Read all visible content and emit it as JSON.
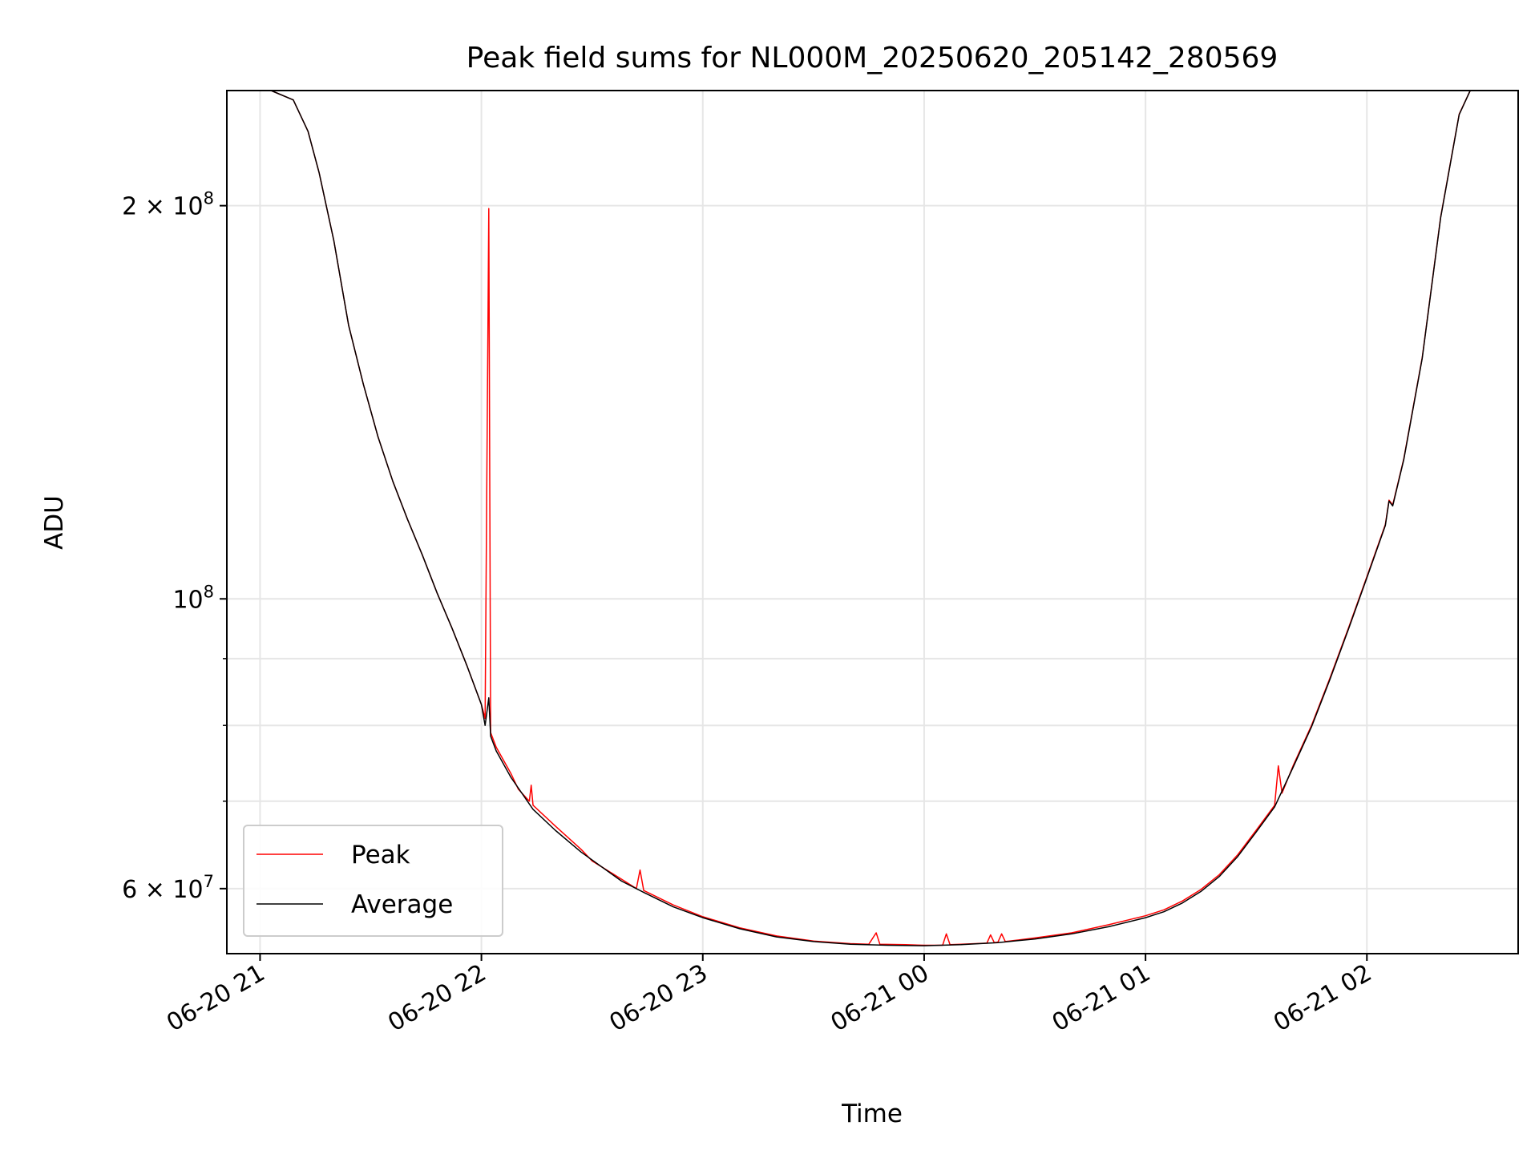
{
  "chart_data": {
    "type": "line",
    "title": "Peak field sums for NL000M_20250620_205142_280569",
    "xlabel": "Time",
    "ylabel": "ADU",
    "y_scale": "log",
    "ylim": [
      53500000,
      245000000
    ],
    "xlim": [
      "2025-06-20T20:51",
      "2025-06-21T02:41"
    ],
    "x_ticks": [
      {
        "t": "2025-06-20T21:00",
        "label": "06-20 21"
      },
      {
        "t": "2025-06-20T22:00",
        "label": "06-20 22"
      },
      {
        "t": "2025-06-20T23:00",
        "label": "06-20 23"
      },
      {
        "t": "2025-06-21T00:00",
        "label": "06-21 00"
      },
      {
        "t": "2025-06-21T01:00",
        "label": "06-21 01"
      },
      {
        "t": "2025-06-21T02:00",
        "label": "06-21 02"
      }
    ],
    "y_ticks_major": [
      {
        "value": 100000000,
        "base": "10",
        "exp": "8"
      },
      {
        "value": 200000000,
        "base": "2 × 10",
        "exp": "8"
      },
      {
        "value": 60000000,
        "base": "6 × 10",
        "exp": "7"
      }
    ],
    "y_ticks_minor": [
      70000000,
      80000000,
      90000000
    ],
    "grid": true,
    "legend": "lower left",
    "series": [
      {
        "name": "Peak",
        "color": "#ff0000",
        "points": [
          [
            "2025-06-20T20:51",
            245000000
          ],
          [
            "2025-06-20T21:03",
            245000000
          ],
          [
            "2025-06-20T21:09",
            241000000
          ],
          [
            "2025-06-20T21:13",
            228000000
          ],
          [
            "2025-06-20T21:16",
            212000000
          ],
          [
            "2025-06-20T21:20",
            188000000
          ],
          [
            "2025-06-20T21:24",
            162000000
          ],
          [
            "2025-06-20T21:28",
            146000000
          ],
          [
            "2025-06-20T21:32",
            133000000
          ],
          [
            "2025-06-20T21:36",
            123000000
          ],
          [
            "2025-06-20T21:40",
            115000000
          ],
          [
            "2025-06-20T21:44",
            108000000
          ],
          [
            "2025-06-20T21:48",
            101000000
          ],
          [
            "2025-06-20T21:52",
            95000000
          ],
          [
            "2025-06-20T21:56",
            89000000
          ],
          [
            "2025-06-20T22:00",
            83000000
          ],
          [
            "2025-06-20T22:01",
            81000000
          ],
          [
            "2025-06-20T22:02",
            199000000
          ],
          [
            "2025-06-20T22:02:30",
            79000000
          ],
          [
            "2025-06-20T22:04",
            77000000
          ],
          [
            "2025-06-20T22:08",
            73500000
          ],
          [
            "2025-06-20T22:10",
            71500000
          ],
          [
            "2025-06-20T22:13",
            70000000
          ],
          [
            "2025-06-20T22:13:30",
            72000000
          ],
          [
            "2025-06-20T22:14",
            69500000
          ],
          [
            "2025-06-20T22:20",
            67000000
          ],
          [
            "2025-06-20T22:27",
            64300000
          ],
          [
            "2025-06-20T22:30",
            63000000
          ],
          [
            "2025-06-20T22:38",
            61000000
          ],
          [
            "2025-06-20T22:42",
            60000000
          ],
          [
            "2025-06-20T22:43",
            62000000
          ],
          [
            "2025-06-20T22:44",
            59800000
          ],
          [
            "2025-06-20T22:52",
            58300000
          ],
          [
            "2025-06-20T23:00",
            57100000
          ],
          [
            "2025-06-20T23:10",
            56000000
          ],
          [
            "2025-06-20T23:20",
            55200000
          ],
          [
            "2025-06-20T23:30",
            54700000
          ],
          [
            "2025-06-20T23:40",
            54450000
          ],
          [
            "2025-06-20T23:45",
            54400000
          ],
          [
            "2025-06-20T23:47",
            55500000
          ],
          [
            "2025-06-20T23:48",
            54400000
          ],
          [
            "2025-06-20T23:55",
            54350000
          ],
          [
            "2025-06-21T00:00",
            54300000
          ],
          [
            "2025-06-21T00:05",
            54300000
          ],
          [
            "2025-06-21T00:06",
            55400000
          ],
          [
            "2025-06-21T00:07",
            54350000
          ],
          [
            "2025-06-21T00:10",
            54400000
          ],
          [
            "2025-06-21T00:17",
            54500000
          ],
          [
            "2025-06-21T00:18",
            55300000
          ],
          [
            "2025-06-21T00:19",
            54550000
          ],
          [
            "2025-06-21T00:20",
            54600000
          ],
          [
            "2025-06-21T00:21",
            55400000
          ],
          [
            "2025-06-21T00:22",
            54650000
          ],
          [
            "2025-06-21T00:30",
            55000000
          ],
          [
            "2025-06-21T00:40",
            55500000
          ],
          [
            "2025-06-21T00:50",
            56300000
          ],
          [
            "2025-06-21T01:00",
            57200000
          ],
          [
            "2025-06-21T01:05",
            57800000
          ],
          [
            "2025-06-21T01:10",
            58700000
          ],
          [
            "2025-06-21T01:15",
            59900000
          ],
          [
            "2025-06-21T01:20",
            61500000
          ],
          [
            "2025-06-21T01:25",
            63700000
          ],
          [
            "2025-06-21T01:30",
            66500000
          ],
          [
            "2025-06-21T01:35",
            69500000
          ],
          [
            "2025-06-21T01:36",
            74500000
          ],
          [
            "2025-06-21T01:37",
            71000000
          ],
          [
            "2025-06-21T01:40",
            74500000
          ],
          [
            "2025-06-21T01:45",
            80000000
          ],
          [
            "2025-06-21T01:50",
            87000000
          ],
          [
            "2025-06-21T01:55",
            95000000
          ],
          [
            "2025-06-21T02:00",
            104000000
          ],
          [
            "2025-06-21T02:05",
            114000000
          ],
          [
            "2025-06-21T02:06",
            119000000
          ],
          [
            "2025-06-21T02:07",
            118000000
          ],
          [
            "2025-06-21T02:10",
            128000000
          ],
          [
            "2025-06-21T02:15",
            153000000
          ],
          [
            "2025-06-21T02:20",
            196000000
          ],
          [
            "2025-06-21T02:25",
            235000000
          ],
          [
            "2025-06-21T02:28",
            245000000
          ],
          [
            "2025-06-21T02:41",
            245000000
          ]
        ]
      },
      {
        "name": "Average",
        "color": "#000000",
        "points": [
          [
            "2025-06-20T20:51",
            245000000
          ],
          [
            "2025-06-20T21:03",
            245000000
          ],
          [
            "2025-06-20T21:09",
            241000000
          ],
          [
            "2025-06-20T21:13",
            228000000
          ],
          [
            "2025-06-20T21:16",
            212000000
          ],
          [
            "2025-06-20T21:20",
            188000000
          ],
          [
            "2025-06-20T21:24",
            162000000
          ],
          [
            "2025-06-20T21:28",
            146000000
          ],
          [
            "2025-06-20T21:32",
            133000000
          ],
          [
            "2025-06-20T21:36",
            123000000
          ],
          [
            "2025-06-20T21:40",
            115000000
          ],
          [
            "2025-06-20T21:44",
            108000000
          ],
          [
            "2025-06-20T21:48",
            101000000
          ],
          [
            "2025-06-20T21:52",
            95000000
          ],
          [
            "2025-06-20T21:56",
            89000000
          ],
          [
            "2025-06-20T22:00",
            83000000
          ],
          [
            "2025-06-20T22:01",
            80000000
          ],
          [
            "2025-06-20T22:02",
            84000000
          ],
          [
            "2025-06-20T22:02:30",
            78500000
          ],
          [
            "2025-06-20T22:04",
            76500000
          ],
          [
            "2025-06-20T22:08",
            73000000
          ],
          [
            "2025-06-20T22:14",
            69000000
          ],
          [
            "2025-06-20T22:20",
            66500000
          ],
          [
            "2025-06-20T22:27",
            64000000
          ],
          [
            "2025-06-20T22:38",
            60800000
          ],
          [
            "2025-06-20T22:44",
            59600000
          ],
          [
            "2025-06-20T22:52",
            58100000
          ],
          [
            "2025-06-20T23:00",
            57000000
          ],
          [
            "2025-06-20T23:10",
            55900000
          ],
          [
            "2025-06-20T23:20",
            55100000
          ],
          [
            "2025-06-20T23:30",
            54650000
          ],
          [
            "2025-06-20T23:40",
            54400000
          ],
          [
            "2025-06-20T23:50",
            54300000
          ],
          [
            "2025-06-21T00:00",
            54250000
          ],
          [
            "2025-06-21T00:10",
            54350000
          ],
          [
            "2025-06-21T00:20",
            54550000
          ],
          [
            "2025-06-21T00:30",
            54900000
          ],
          [
            "2025-06-21T00:40",
            55400000
          ],
          [
            "2025-06-21T00:50",
            56100000
          ],
          [
            "2025-06-21T01:00",
            57000000
          ],
          [
            "2025-06-21T01:05",
            57600000
          ],
          [
            "2025-06-21T01:10",
            58500000
          ],
          [
            "2025-06-21T01:15",
            59700000
          ],
          [
            "2025-06-21T01:20",
            61300000
          ],
          [
            "2025-06-21T01:25",
            63500000
          ],
          [
            "2025-06-21T01:30",
            66300000
          ],
          [
            "2025-06-21T01:35",
            69300000
          ],
          [
            "2025-06-21T01:40",
            74300000
          ],
          [
            "2025-06-21T01:45",
            79800000
          ],
          [
            "2025-06-21T01:50",
            86800000
          ],
          [
            "2025-06-21T01:55",
            94800000
          ],
          [
            "2025-06-21T02:00",
            103800000
          ],
          [
            "2025-06-21T02:05",
            113800000
          ],
          [
            "2025-06-21T02:06",
            118800000
          ],
          [
            "2025-06-21T02:07",
            117800000
          ],
          [
            "2025-06-21T02:10",
            127800000
          ],
          [
            "2025-06-21T02:15",
            152800000
          ],
          [
            "2025-06-21T02:20",
            195800000
          ],
          [
            "2025-06-21T02:25",
            234800000
          ],
          [
            "2025-06-21T02:28",
            245000000
          ],
          [
            "2025-06-21T02:41",
            245000000
          ]
        ]
      }
    ]
  }
}
